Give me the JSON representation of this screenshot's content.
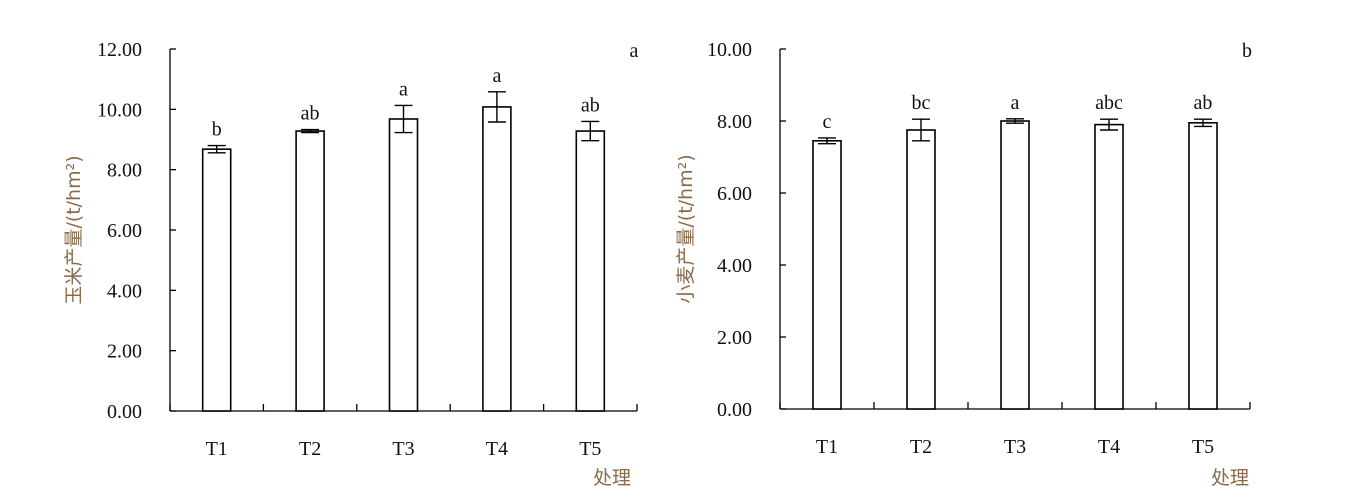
{
  "chart_data": [
    {
      "type": "bar",
      "panel_label": "a",
      "ylabel": "玉米产量/(t/hm²)",
      "xlabel": "处理",
      "ylim": [
        0,
        12
      ],
      "ytick_labels": [
        "0.00",
        "2.00",
        "4.00",
        "6.00",
        "8.00",
        "10.00",
        "12.00"
      ],
      "categories": [
        "T1",
        "T2",
        "T3",
        "T4",
        "T5"
      ],
      "values": [
        8.68,
        9.28,
        9.68,
        10.08,
        9.28
      ],
      "errors": [
        0.12,
        0.05,
        0.45,
        0.5,
        0.32
      ],
      "significance": [
        "b",
        "ab",
        "a",
        "a",
        "ab"
      ]
    },
    {
      "type": "bar",
      "panel_label": "b",
      "ylabel": "小麦产量/(t/hm²)",
      "xlabel": "处理",
      "ylim": [
        0,
        10
      ],
      "ytick_labels": [
        "0.00",
        "2.00",
        "4.00",
        "6.00",
        "8.00",
        "10.00"
      ],
      "categories": [
        "T1",
        "T2",
        "T3",
        "T4",
        "T5"
      ],
      "values": [
        7.45,
        7.75,
        8.0,
        7.9,
        7.95
      ],
      "errors": [
        0.08,
        0.3,
        0.06,
        0.15,
        0.1
      ],
      "significance": [
        "c",
        "bc",
        "a",
        "abc",
        "ab"
      ]
    }
  ]
}
